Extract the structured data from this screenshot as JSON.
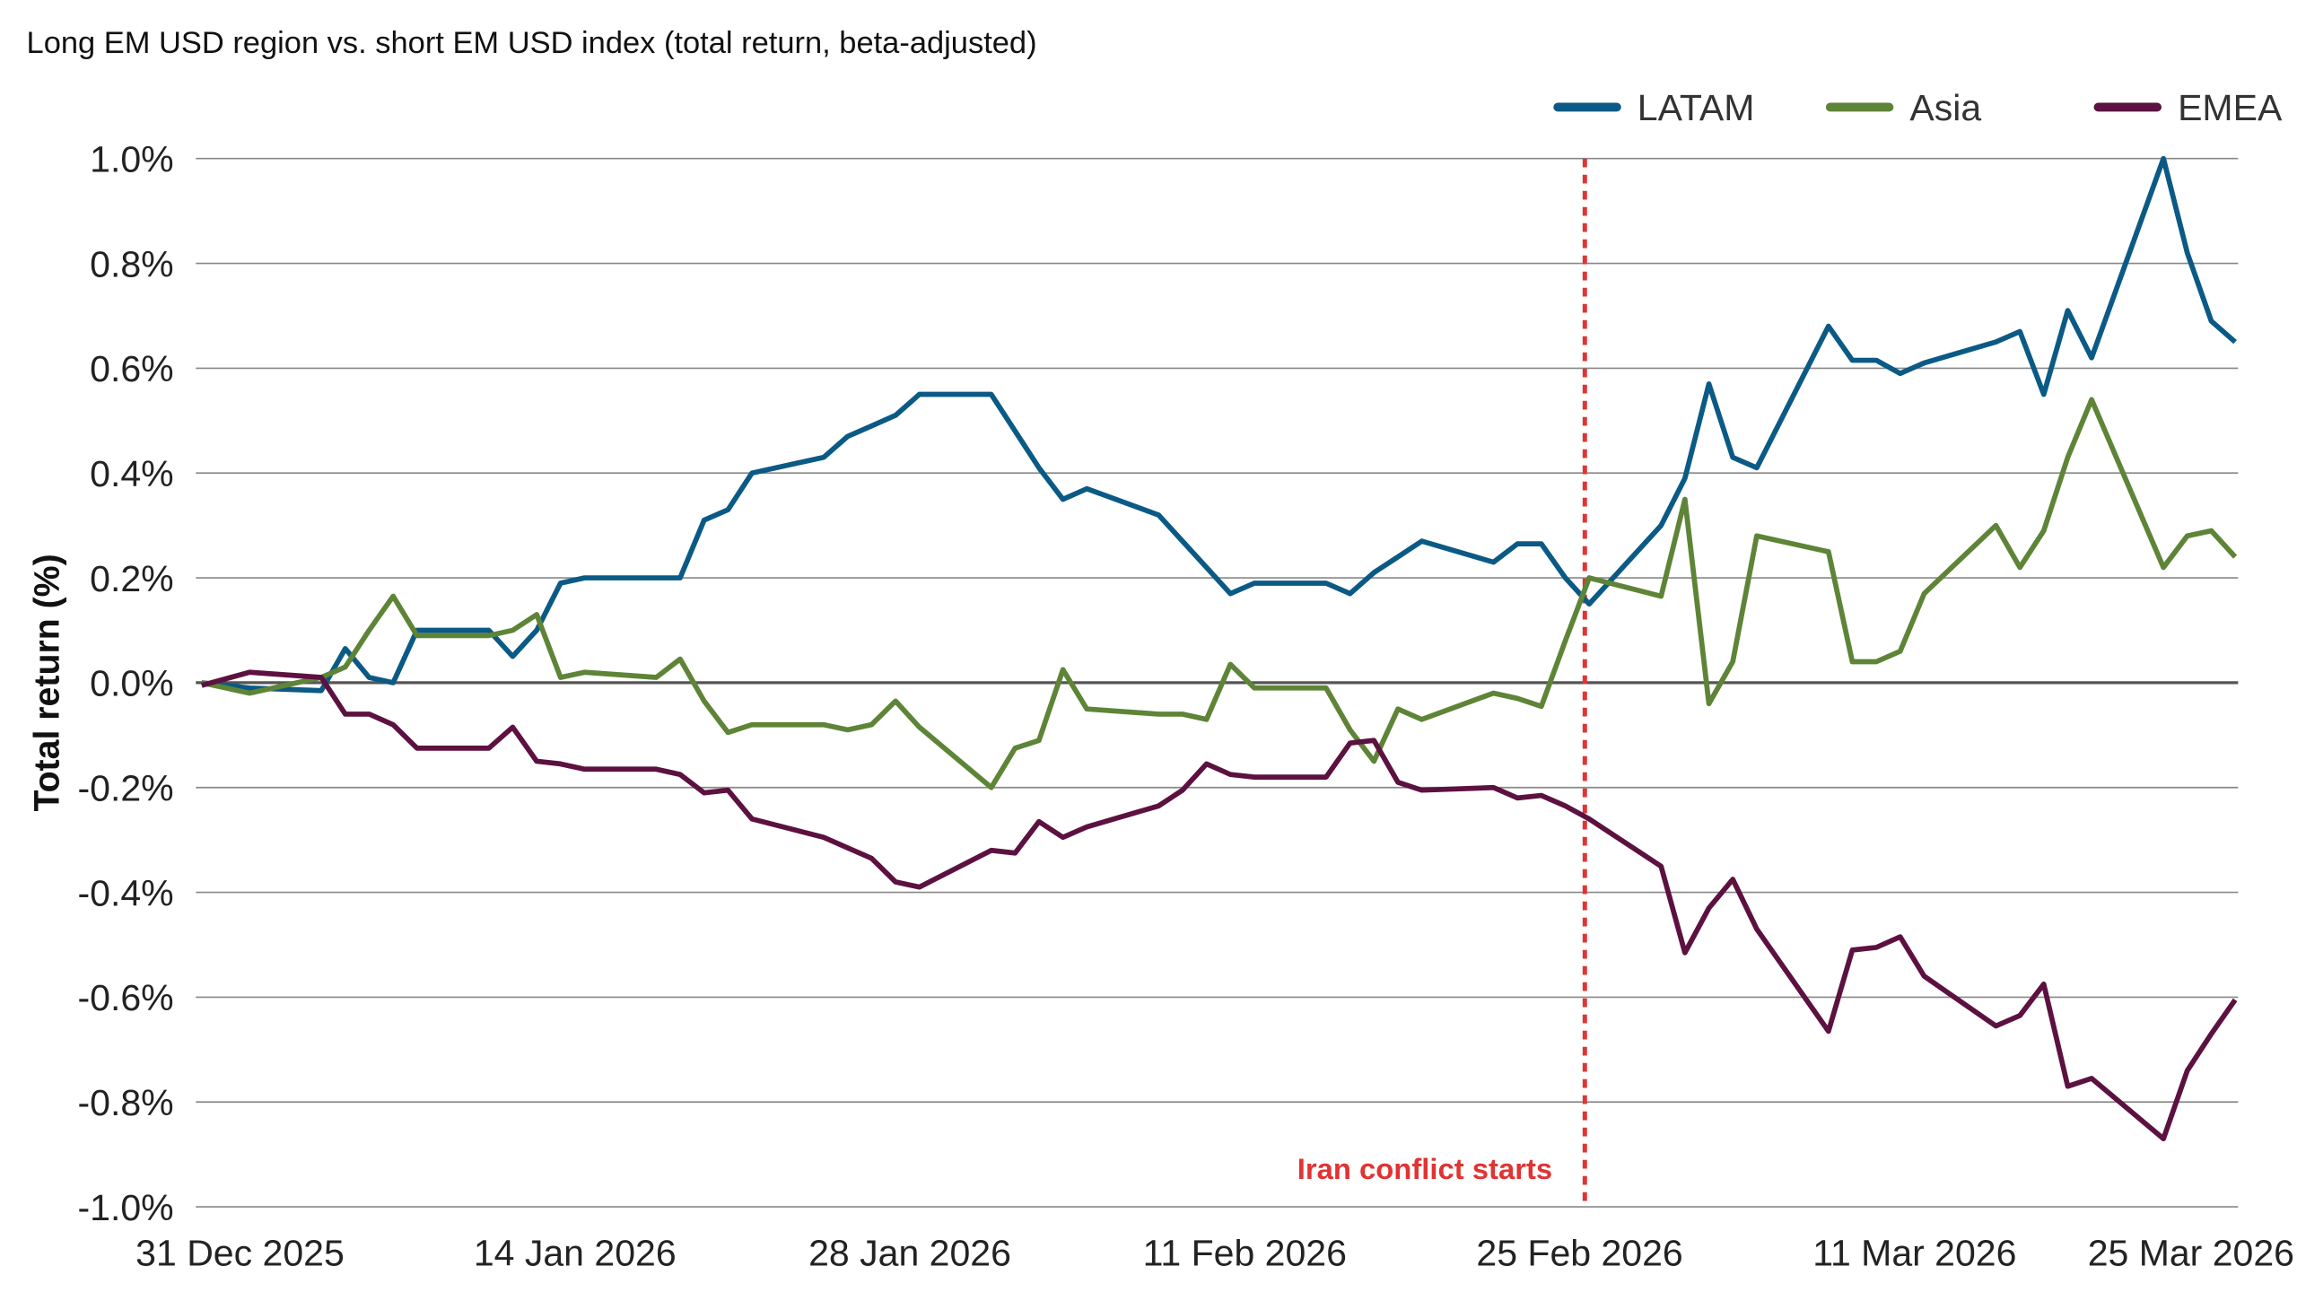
{
  "chart_data": {
    "type": "line",
    "title": "Long EM USD region vs. short EM USD index (total return, beta-adjusted)",
    "xlabel": "",
    "ylabel": "Total return (%)",
    "ylim": [
      -1.0,
      1.0
    ],
    "y_ticks": [
      "1.0%",
      "0.8%",
      "0.6%",
      "0.4%",
      "0.2%",
      "0.0%",
      "-0.2%",
      "-0.4%",
      "-0.6%",
      "-0.8%",
      "-1.0%"
    ],
    "y_tick_values": [
      1.0,
      0.8,
      0.6,
      0.4,
      0.2,
      0.0,
      -0.2,
      -0.4,
      -0.6,
      -0.8,
      -1.0
    ],
    "xlim": [
      "2025-12-31",
      "2026-03-26"
    ],
    "x_ticks": [
      {
        "date": "2025-12-31",
        "label": "31 Dec 2025"
      },
      {
        "date": "2026-01-14",
        "label": "14 Jan 2026"
      },
      {
        "date": "2026-01-28",
        "label": "28 Jan 2026"
      },
      {
        "date": "2026-02-11",
        "label": "11 Feb 2026"
      },
      {
        "date": "2026-02-25",
        "label": "25 Feb 2026"
      },
      {
        "date": "2026-03-11",
        "label": "11 Mar 2026"
      },
      {
        "date": "2026-03-25",
        "label": "25 Mar 2026"
      }
    ],
    "grid": "horizontal",
    "legend_position": "top-right",
    "annotation": {
      "label": "Iran conflict starts",
      "date": "2026-02-27",
      "color": "#e03333",
      "style": "dashed vertical line"
    },
    "dates": [
      "2025-12-31",
      "2026-01-02",
      "2026-01-05",
      "2026-01-06",
      "2026-01-07",
      "2026-01-08",
      "2026-01-09",
      "2026-01-12",
      "2026-01-13",
      "2026-01-14",
      "2026-01-15",
      "2026-01-16",
      "2026-01-19",
      "2026-01-20",
      "2026-01-21",
      "2026-01-22",
      "2026-01-23",
      "2026-01-26",
      "2026-01-27",
      "2026-01-28",
      "2026-01-29",
      "2026-01-30",
      "2026-02-02",
      "2026-02-03",
      "2026-02-04",
      "2026-02-05",
      "2026-02-06",
      "2026-02-09",
      "2026-02-10",
      "2026-02-11",
      "2026-02-12",
      "2026-02-13",
      "2026-02-16",
      "2026-02-17",
      "2026-02-18",
      "2026-02-19",
      "2026-02-20",
      "2026-02-23",
      "2026-02-24",
      "2026-02-25",
      "2026-02-26",
      "2026-02-27",
      "2026-03-02",
      "2026-03-03",
      "2026-03-04",
      "2026-03-05",
      "2026-03-06",
      "2026-03-09",
      "2026-03-10",
      "2026-03-11",
      "2026-03-12",
      "2026-03-13",
      "2026-03-16",
      "2026-03-17",
      "2026-03-18",
      "2026-03-19",
      "2026-03-20",
      "2026-03-23",
      "2026-03-24",
      "2026-03-25",
      "2026-03-26"
    ],
    "series": [
      {
        "name": "LATAM",
        "color": "#0b5a85",
        "values": [
          0,
          -0.01,
          -0.015,
          0.065,
          0.01,
          0.0,
          0.1,
          0.1,
          0.05,
          0.1,
          0.19,
          0.2,
          0.2,
          0.2,
          0.31,
          0.33,
          0.4,
          0.43,
          0.47,
          0.49,
          0.51,
          0.55,
          0.55,
          0.48,
          0.41,
          0.35,
          0.37,
          0.32,
          0.27,
          0.22,
          0.17,
          0.19,
          0.19,
          0.17,
          0.21,
          0.24,
          0.27,
          0.23,
          0.265,
          0.265,
          0.2,
          0.15,
          0.3,
          0.39,
          0.57,
          0.43,
          0.41,
          0.68,
          0.615,
          0.615,
          0.59,
          0.61,
          0.65,
          0.67,
          0.55,
          0.71,
          0.62,
          1.0,
          0.82,
          0.69,
          0.65
        ]
      },
      {
        "name": "Asia",
        "color": "#5e8437",
        "values": [
          0,
          -0.02,
          0.01,
          0.03,
          0.1,
          0.165,
          0.09,
          0.09,
          0.1,
          0.13,
          0.01,
          0.02,
          0.01,
          0.045,
          -0.035,
          -0.095,
          -0.08,
          -0.08,
          -0.09,
          -0.08,
          -0.035,
          -0.085,
          -0.2,
          -0.125,
          -0.11,
          0.025,
          -0.05,
          -0.06,
          -0.06,
          -0.07,
          0.035,
          -0.01,
          -0.01,
          -0.09,
          -0.15,
          -0.05,
          -0.07,
          -0.02,
          -0.03,
          -0.045,
          0.08,
          0.2,
          0.165,
          0.35,
          -0.04,
          0.04,
          0.28,
          0.25,
          0.04,
          0.04,
          0.06,
          0.17,
          0.3,
          0.22,
          0.29,
          0.43,
          0.54,
          0.22,
          0.28,
          0.29,
          0.24
        ]
      },
      {
        "name": "EMEA",
        "color": "#5c1140",
        "values": [
          -0.005,
          0.02,
          0.01,
          -0.06,
          -0.06,
          -0.08,
          -0.125,
          -0.125,
          -0.085,
          -0.15,
          -0.155,
          -0.165,
          -0.165,
          -0.175,
          -0.21,
          -0.205,
          -0.26,
          -0.295,
          -0.315,
          -0.335,
          -0.38,
          -0.39,
          -0.32,
          -0.325,
          -0.265,
          -0.295,
          -0.275,
          -0.235,
          -0.205,
          -0.155,
          -0.175,
          -0.18,
          -0.18,
          -0.115,
          -0.11,
          -0.19,
          -0.205,
          -0.2,
          -0.22,
          -0.215,
          -0.235,
          -0.26,
          -0.35,
          -0.515,
          -0.43,
          -0.375,
          -0.47,
          -0.665,
          -0.51,
          -0.505,
          -0.485,
          -0.56,
          -0.655,
          -0.635,
          -0.575,
          -0.77,
          -0.755,
          -0.87,
          -0.74,
          -0.67,
          -0.605
        ]
      }
    ]
  }
}
